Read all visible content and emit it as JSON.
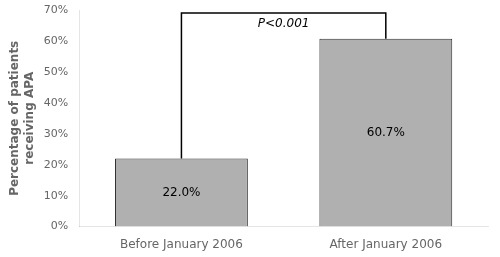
{
  "chart_data": {
    "type": "bar",
    "categories": [
      "Before January 2006",
      "After January 2006"
    ],
    "values": [
      22.0,
      60.7
    ],
    "value_labels": [
      "22.0%",
      "60.7%"
    ],
    "data_labels": true,
    "color": "#b0b0b0",
    "ylabel": "Percentage of patients\nreceiving APA",
    "ylim": [
      0,
      70
    ],
    "yticks": [
      {
        "value": 0,
        "label": "0%"
      },
      {
        "value": 10,
        "label": "10%"
      },
      {
        "value": 20,
        "label": "20%"
      },
      {
        "value": 30,
        "label": "30%"
      },
      {
        "value": 40,
        "label": "40%"
      },
      {
        "value": 50,
        "label": "50%"
      },
      {
        "value": 60,
        "label": "60%"
      },
      {
        "value": 70,
        "label": "70%"
      }
    ],
    "annotations": [
      "P<0.001"
    ],
    "grid": false
  }
}
